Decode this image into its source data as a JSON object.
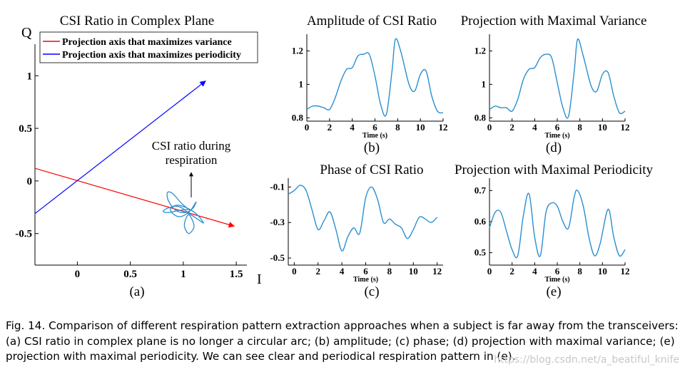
{
  "figure": {
    "caption": "Fig. 14.  Comparison of different respiration pattern extraction approaches when a subject is far away from the transceivers: (a) CSI ratio in complex plane is no longer a circular arc; (b) amplitude; (c) phase; (d) projection with maximal variance; (e) projection with maximal periodicity. We can see clear and periodical respiration pattern in (e).",
    "watermark": "https://blog.csdn.net/a_beatiful_knife"
  },
  "panels": {
    "a": {
      "title": "CSI Ratio in Complex Plane",
      "label": "(a)",
      "annotation_line1": "CSI ratio during",
      "annotation_line2": "respiration",
      "legend": [
        "Projection axis that maximizes variance",
        "Projection axis that maximizes periodicity"
      ]
    },
    "b": {
      "title": "Amplitude of CSI Ratio",
      "label": "(b)"
    },
    "c": {
      "title": "Phase of CSI Ratio",
      "label": "(c)"
    },
    "d": {
      "title": "Projection with Maximal Variance",
      "label": "(d)"
    },
    "e": {
      "title": "Projection with Maximal Periodicity",
      "label": "(e)"
    }
  },
  "chart_data": [
    {
      "id": "a",
      "type": "line",
      "title": "CSI Ratio in Complex Plane",
      "xlabel": "I",
      "ylabel": "Q",
      "xlim": [
        -0.4,
        1.6
      ],
      "ylim": [
        -0.8,
        1.3
      ],
      "xticks": [
        "0",
        "0.5",
        "1",
        "1.5"
      ],
      "xtick_values": [
        0,
        0.5,
        1,
        1.5
      ],
      "yticks": [
        "1",
        "0.5",
        "0",
        "-0.5"
      ],
      "ytick_values": [
        1,
        0.5,
        0,
        -0.5
      ],
      "legend_position": "top-left",
      "series": [
        {
          "name": "Projection axis that maximizes variance",
          "color": "#ff0000",
          "x": [
            -0.4,
            1.48
          ],
          "y": [
            0.12,
            -0.43
          ]
        },
        {
          "name": "Projection axis that maximizes periodicity",
          "color": "#0000ff",
          "x": [
            -0.4,
            1.21
          ],
          "y": [
            -0.31,
            0.95
          ]
        }
      ],
      "loop_color": "#2a8fd0",
      "loop": {
        "x": [
          1.05,
          0.98,
          0.9,
          0.85,
          0.86,
          0.93,
          1.02,
          1.09,
          1.12,
          1.06,
          0.97,
          0.9,
          0.88,
          0.95,
          1.06,
          1.14,
          1.19,
          1.13,
          1.05,
          1.01,
          1.05,
          1.1,
          1.08,
          1.02,
          0.94,
          0.85,
          0.81,
          0.86,
          0.96,
          1.05
        ],
        "y": [
          -0.27,
          -0.21,
          -0.12,
          -0.11,
          -0.19,
          -0.28,
          -0.3,
          -0.26,
          -0.2,
          -0.29,
          -0.34,
          -0.31,
          -0.26,
          -0.23,
          -0.27,
          -0.33,
          -0.4,
          -0.36,
          -0.32,
          -0.42,
          -0.5,
          -0.44,
          -0.36,
          -0.28,
          -0.24,
          -0.26,
          -0.29,
          -0.3,
          -0.28,
          -0.27
        ]
      }
    },
    {
      "id": "b",
      "type": "line",
      "title": "Amplitude of CSI Ratio",
      "xlabel": "Time (s)",
      "xlim": [
        0,
        12
      ],
      "ylim": [
        0.78,
        1.3
      ],
      "xticks": [
        "0",
        "2",
        "4",
        "6",
        "8",
        "10",
        "12"
      ],
      "xtick_values": [
        0,
        2,
        4,
        6,
        8,
        10,
        12
      ],
      "yticks": [
        "0.8",
        "1",
        "1.2"
      ],
      "ytick_values": [
        0.8,
        1,
        1.2
      ],
      "x": [
        0,
        0.5,
        1,
        1.5,
        2,
        2.5,
        3,
        3.5,
        4,
        4.5,
        5,
        5.5,
        6,
        6.5,
        7,
        7.5,
        7.8,
        8.3,
        9,
        9.5,
        10,
        10.5,
        11,
        11.5,
        12
      ],
      "y": [
        0.85,
        0.87,
        0.87,
        0.86,
        0.85,
        0.92,
        1.02,
        1.09,
        1.1,
        1.17,
        1.18,
        1.18,
        1.05,
        0.88,
        0.82,
        1.08,
        1.27,
        1.19,
        1.0,
        0.96,
        1.06,
        1.08,
        0.93,
        0.84,
        0.83
      ]
    },
    {
      "id": "c",
      "type": "line",
      "title": "Phase of CSI Ratio",
      "xlabel": "Time (s)",
      "xlim": [
        -0.5,
        12.5
      ],
      "ylim": [
        -0.54,
        -0.05
      ],
      "xticks": [
        "0",
        "2",
        "4",
        "6",
        "8",
        "10",
        "12"
      ],
      "xtick_values": [
        0,
        2,
        4,
        6,
        8,
        10,
        12
      ],
      "yticks": [
        "-0.1",
        "-0.3",
        "-0.5"
      ],
      "ytick_values": [
        -0.1,
        -0.3,
        -0.5
      ],
      "x": [
        -0.5,
        0,
        0.5,
        1,
        1.5,
        2,
        2.5,
        3,
        3.5,
        4,
        4.5,
        5,
        5.5,
        6,
        6.5,
        7,
        7.5,
        8,
        8.5,
        9,
        9.5,
        10,
        10.5,
        11,
        11.5,
        12
      ],
      "y": [
        -0.14,
        -0.12,
        -0.09,
        -0.12,
        -0.23,
        -0.34,
        -0.29,
        -0.24,
        -0.34,
        -0.46,
        -0.38,
        -0.33,
        -0.36,
        -0.16,
        -0.1,
        -0.17,
        -0.3,
        -0.28,
        -0.31,
        -0.33,
        -0.39,
        -0.34,
        -0.27,
        -0.28,
        -0.3,
        -0.27
      ]
    },
    {
      "id": "d",
      "type": "line",
      "title": "Projection with Maximal Variance",
      "xlabel": "Time (s)",
      "xlim": [
        0,
        12
      ],
      "ylim": [
        0.78,
        1.3
      ],
      "xticks": [
        "0",
        "2",
        "4",
        "6",
        "8",
        "10",
        "12"
      ],
      "xtick_values": [
        0,
        2,
        4,
        6,
        8,
        10,
        12
      ],
      "yticks": [
        "0.8",
        "1",
        "1.2"
      ],
      "ytick_values": [
        0.8,
        1,
        1.2
      ],
      "x": [
        0,
        0.5,
        1,
        1.5,
        2,
        2.5,
        3,
        3.5,
        4,
        4.5,
        5,
        5.5,
        6,
        6.5,
        7,
        7.5,
        7.8,
        8.3,
        9,
        9.5,
        10,
        10.5,
        11,
        11.5,
        12
      ],
      "y": [
        0.85,
        0.87,
        0.86,
        0.86,
        0.84,
        0.91,
        1.03,
        1.09,
        1.1,
        1.16,
        1.18,
        1.16,
        1.01,
        0.86,
        0.81,
        1.08,
        1.27,
        1.17,
        0.99,
        0.96,
        1.06,
        1.07,
        0.93,
        0.83,
        0.84
      ]
    },
    {
      "id": "e",
      "type": "line",
      "title": "Projection with Maximal Periodicity",
      "xlabel": "Time (s)",
      "xlim": [
        0,
        12
      ],
      "ylim": [
        0.46,
        0.74
      ],
      "xticks": [
        "0",
        "2",
        "4",
        "6",
        "8",
        "10",
        "12"
      ],
      "xtick_values": [
        0,
        2,
        4,
        6,
        8,
        10,
        12
      ],
      "yticks": [
        "0.5",
        "0.6",
        "0.7"
      ],
      "ytick_values": [
        0.5,
        0.6,
        0.7
      ],
      "x": [
        0,
        0.5,
        1,
        1.5,
        2,
        2.5,
        3,
        3.5,
        4,
        4.5,
        5,
        5.5,
        6,
        6.5,
        7,
        7.5,
        7.8,
        8.3,
        8.8,
        9.3,
        9.8,
        10.5,
        11,
        11.5,
        12
      ],
      "y": [
        0.58,
        0.63,
        0.63,
        0.57,
        0.51,
        0.49,
        0.62,
        0.69,
        0.55,
        0.49,
        0.63,
        0.66,
        0.65,
        0.6,
        0.58,
        0.68,
        0.7,
        0.65,
        0.55,
        0.49,
        0.53,
        0.64,
        0.55,
        0.49,
        0.51
      ]
    }
  ]
}
